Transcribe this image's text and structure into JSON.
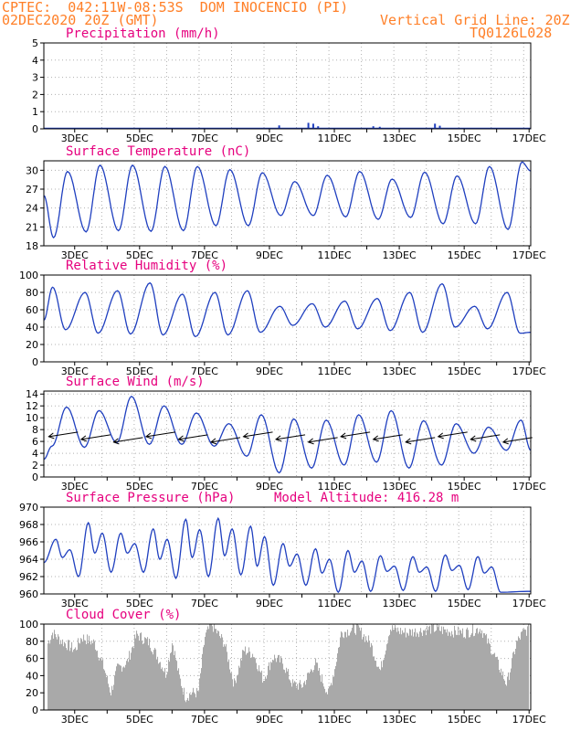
{
  "header": {
    "line1_left": "CPTEC:  042:11W-08:53S  DOM INOCENCIO (PI)",
    "line2_left": "02DEC2020 20Z (GMT)",
    "line2_right": "Vertical Grid Line: 20Z",
    "line3_right": "TQ0126L028"
  },
  "chart_data": [
    {
      "type": "bar",
      "title": "Precipitation (mm/h)",
      "ylim": [
        0,
        5
      ],
      "yticks": [
        0,
        1,
        2,
        3,
        4,
        5
      ],
      "xlim": [
        2.05,
        17.05
      ],
      "xtick_labels": [
        "3DEC",
        "5DEC",
        "7DEC",
        "9DEC",
        "11DEC",
        "13DEC",
        "15DEC",
        "17DEC"
      ],
      "x": [
        5.0,
        6.5,
        8.0,
        9.3,
        10.2,
        10.35,
        10.5,
        12.2,
        12.4,
        14.1,
        14.25,
        15.0
      ],
      "values": [
        0.03,
        0.05,
        0.04,
        0.2,
        0.35,
        0.3,
        0.15,
        0.15,
        0.12,
        0.3,
        0.18,
        0.05
      ],
      "color": "#1f3fbf"
    },
    {
      "type": "line",
      "title": "Surface Temperature (nC)",
      "ylim": [
        18,
        31.5
      ],
      "yticks": [
        18,
        21,
        24,
        27,
        30
      ],
      "xlim": [
        2.05,
        17.05
      ],
      "xtick_labels": [
        "3DEC",
        "5DEC",
        "7DEC",
        "9DEC",
        "11DEC",
        "13DEC",
        "15DEC",
        "17DEC"
      ],
      "min_vals": [
        19.3,
        20.2,
        20.4,
        20.3,
        20.4,
        21.2,
        21.2,
        22.8,
        22.8,
        22.6,
        22.2,
        22.5,
        21.5,
        21.5,
        20.6
      ],
      "max_vals": [
        29.8,
        30.8,
        30.8,
        30.6,
        30.6,
        30.1,
        29.6,
        28.2,
        29.2,
        29.8,
        28.6,
        29.7,
        29.1,
        30.6,
        31.3
      ],
      "end_value": 29.9,
      "start_value": 26.0,
      "color": "#1f3fbf"
    },
    {
      "type": "line",
      "title": "Relative Humidity (%)",
      "ylim": [
        0,
        100
      ],
      "yticks": [
        0,
        20,
        40,
        60,
        80,
        100
      ],
      "xlim": [
        2.05,
        17.05
      ],
      "xtick_labels": [
        "3DEC",
        "5DEC",
        "7DEC",
        "9DEC",
        "11DEC",
        "13DEC",
        "15DEC",
        "17DEC"
      ],
      "min_vals": [
        37,
        33,
        32,
        31,
        29,
        31,
        34,
        42,
        40,
        38,
        36,
        34,
        40,
        38,
        33
      ],
      "max_vals": [
        86,
        80,
        82,
        91,
        78,
        80,
        82,
        64,
        67,
        70,
        73,
        80,
        90,
        64,
        80
      ],
      "start_value": 48,
      "end_value": 34,
      "color": "#1f3fbf"
    },
    {
      "type": "line",
      "title": "Surface Wind (m/s)",
      "ylim": [
        0,
        14.5
      ],
      "yticks": [
        0,
        2,
        4,
        6,
        8,
        10,
        12,
        14
      ],
      "xlim": [
        2.05,
        17.05
      ],
      "xtick_labels": [
        "3DEC",
        "5DEC",
        "7DEC",
        "9DEC",
        "11DEC",
        "13DEC",
        "15DEC",
        "17DEC"
      ],
      "max_vals": [
        11.8,
        11.2,
        13.6,
        12.0,
        10.8,
        9.0,
        10.5,
        9.8,
        9.6,
        10.5,
        11.2,
        9.5,
        9.0,
        8.4,
        9.6
      ],
      "min_vals": [
        5.2,
        5.0,
        5.8,
        5.5,
        5.5,
        5.2,
        3.5,
        0.7,
        1.5,
        2.0,
        2.5,
        1.5,
        2.0,
        4.0,
        4.5
      ],
      "vector_level": 6.5,
      "color": "#1f3fbf"
    },
    {
      "type": "line",
      "title": "Surface Pressure (hPa)",
      "annotation": "Model Altitude: 416.28 m",
      "ylim": [
        960,
        970
      ],
      "yticks": [
        960,
        962,
        964,
        966,
        968,
        970
      ],
      "xlim": [
        2.05,
        17.05
      ],
      "xtick_labels": [
        "3DEC",
        "5DEC",
        "7DEC",
        "9DEC",
        "11DEC",
        "13DEC",
        "15DEC",
        "17DEC"
      ],
      "peaks": [
        966.3,
        968.2,
        967.0,
        967.5,
        968.6,
        968.7,
        967.8,
        965.8,
        965.2,
        965.0,
        964.4,
        964.3,
        964.5,
        964.3
      ],
      "troughs": [
        962.0,
        962.5,
        962.5,
        961.8,
        962.0,
        962.2,
        961.0,
        961.0,
        960.2,
        960.3,
        960.4,
        960.3,
        960.5,
        960.2
      ],
      "start_value": 963.6,
      "color": "#1f3fbf"
    },
    {
      "type": "area",
      "title": "Cloud Cover (%)",
      "ylim": [
        0,
        100
      ],
      "yticks": [
        0,
        20,
        40,
        60,
        80,
        100
      ],
      "xlim": [
        2.05,
        17.05
      ],
      "xtick_labels": [
        "3DEC",
        "5DEC",
        "7DEC",
        "9DEC",
        "11DEC",
        "13DEC",
        "15DEC",
        "17DEC"
      ],
      "profile": [
        [
          2.1,
          72
        ],
        [
          2.3,
          90
        ],
        [
          2.6,
          80
        ],
        [
          3.0,
          70
        ],
        [
          3.2,
          85
        ],
        [
          3.6,
          78
        ],
        [
          3.9,
          48
        ],
        [
          4.1,
          20
        ],
        [
          4.3,
          48
        ],
        [
          4.6,
          55
        ],
        [
          4.9,
          88
        ],
        [
          5.3,
          78
        ],
        [
          5.6,
          58
        ],
        [
          5.8,
          42
        ],
        [
          6.0,
          80
        ],
        [
          6.2,
          40
        ],
        [
          6.4,
          15
        ],
        [
          6.6,
          20
        ],
        [
          6.8,
          20
        ],
        [
          7.0,
          85
        ],
        [
          7.2,
          100
        ],
        [
          7.6,
          78
        ],
        [
          7.9,
          30
        ],
        [
          8.2,
          70
        ],
        [
          8.5,
          65
        ],
        [
          8.8,
          35
        ],
        [
          9.1,
          62
        ],
        [
          9.4,
          55
        ],
        [
          9.7,
          30
        ],
        [
          10.0,
          28
        ],
        [
          10.4,
          55
        ],
        [
          10.8,
          18
        ],
        [
          11.0,
          48
        ],
        [
          11.2,
          90
        ],
        [
          11.7,
          95
        ],
        [
          12.1,
          78
        ],
        [
          12.4,
          45
        ],
        [
          12.7,
          95
        ],
        [
          13.2,
          90
        ],
        [
          13.6,
          92
        ],
        [
          14.0,
          95
        ],
        [
          14.5,
          92
        ],
        [
          15.0,
          90
        ],
        [
          15.5,
          95
        ],
        [
          15.9,
          65
        ],
        [
          16.3,
          30
        ],
        [
          16.6,
          78
        ],
        [
          16.8,
          90
        ],
        [
          17.0,
          95
        ]
      ],
      "color": "#a9a9a9"
    }
  ]
}
